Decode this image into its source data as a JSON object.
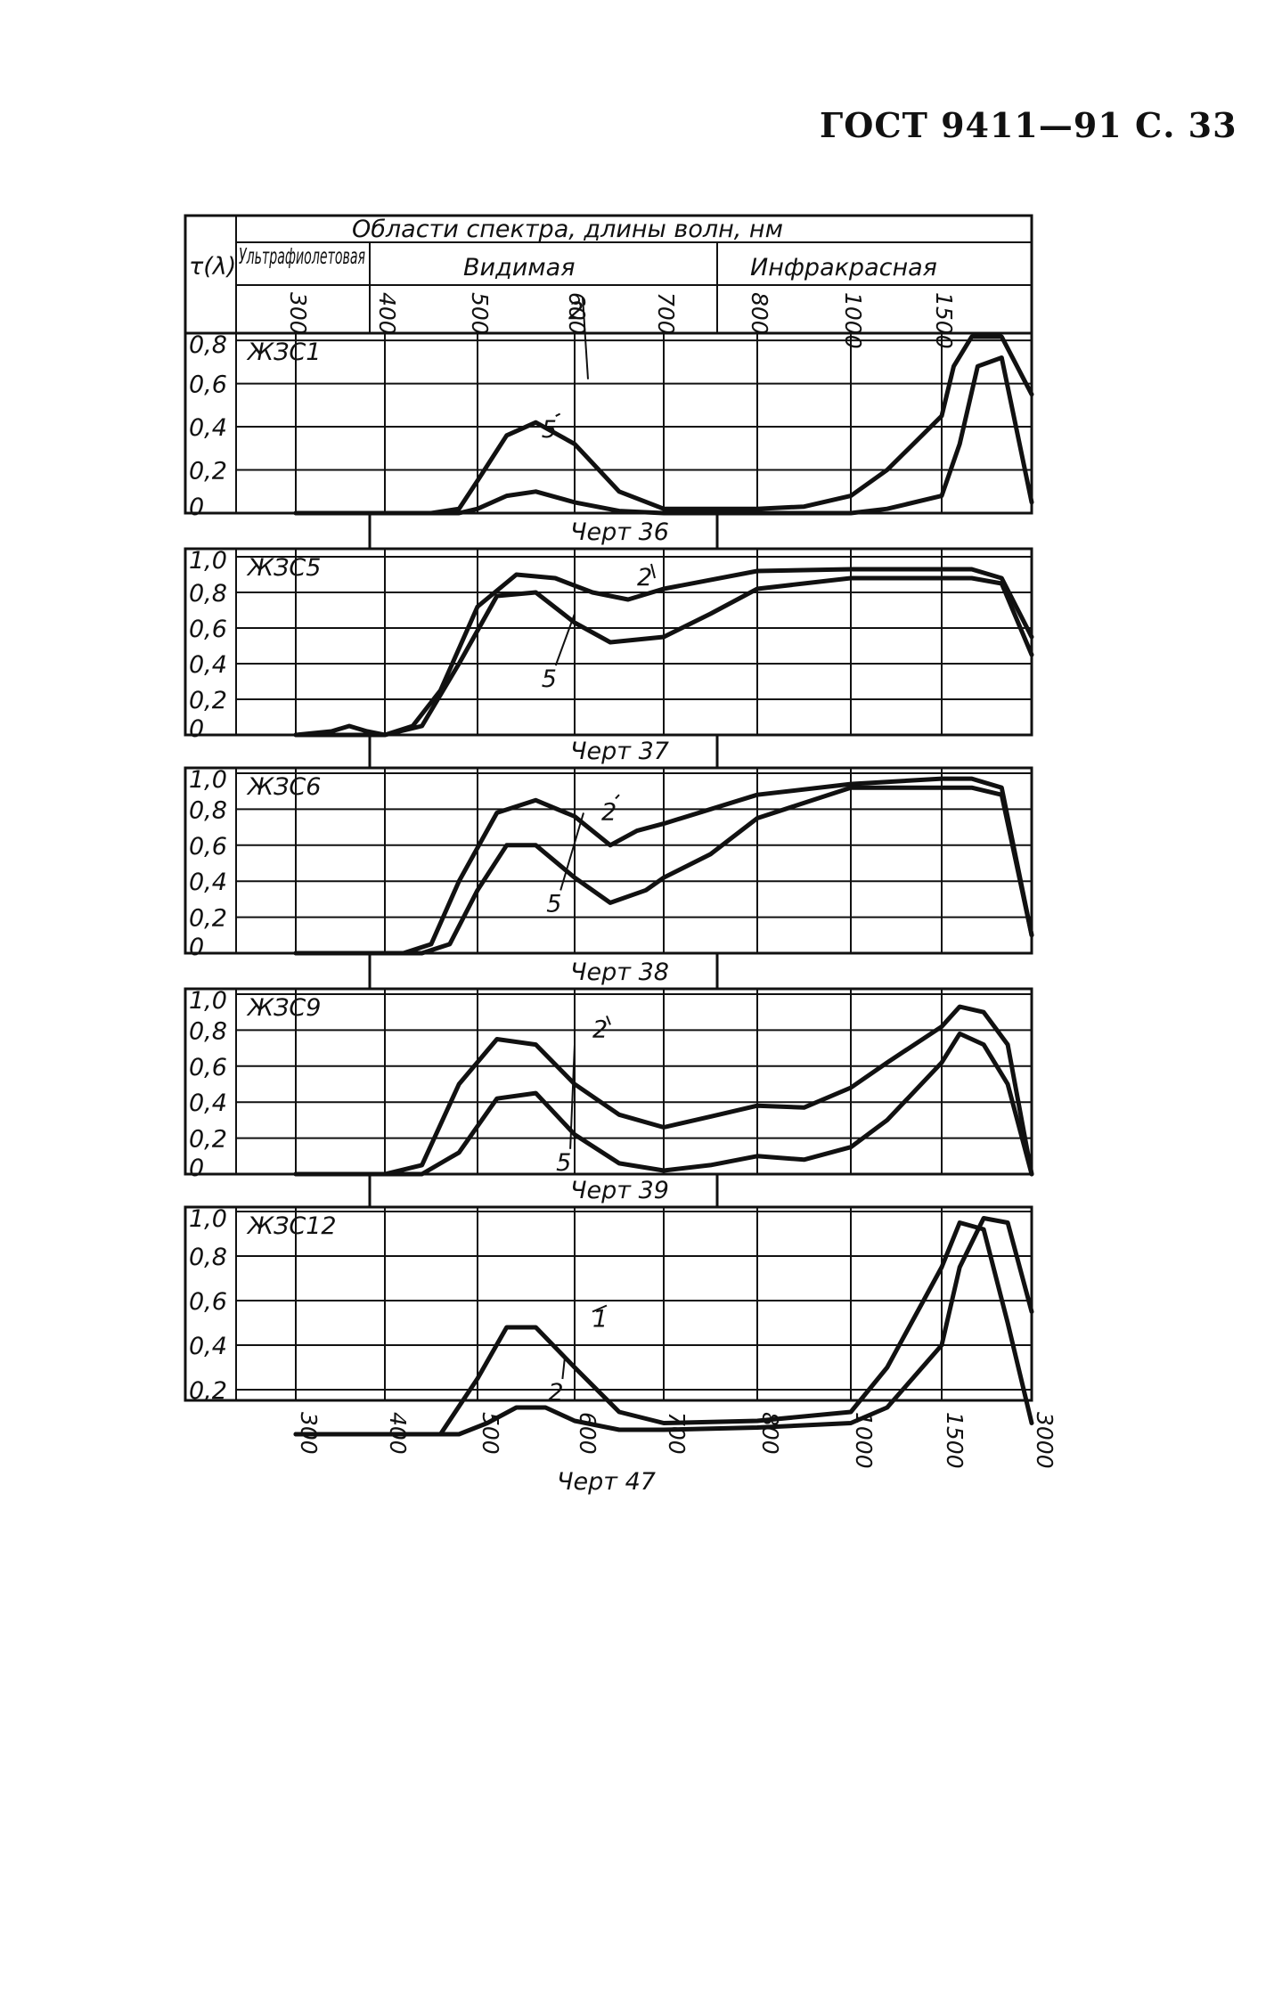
{
  "page": {
    "header": "ГОСТ  9411—91  С.  33",
    "figure_label": "Черт 47"
  },
  "table_header": {
    "ylabel": "τ(λ)",
    "region_title": "Области спектра, длины волн,   нм",
    "regions": [
      "Ультрафиолетовая",
      "Видимая",
      "Инфракрасная"
    ],
    "top_ticks": [
      "300",
      "400",
      "500",
      "600",
      "700",
      "800",
      "1000",
      "1500"
    ],
    "bottom_ticks": [
      "300",
      "400",
      "500",
      "600",
      "700",
      "800",
      "1000",
      "1500",
      "3000"
    ]
  },
  "chart_data": [
    {
      "type": "line",
      "title": "ЖЗС1",
      "caption": "Черт 36",
      "x_scale": "wavelength nm, nonlinear",
      "ylim": [
        0,
        0.9
      ],
      "y_ticks": [
        "0,8",
        "0,6",
        "0,4",
        "0,2",
        "0"
      ],
      "series": [
        {
          "name": "2",
          "x": [
            300,
            450,
            480,
            500,
            530,
            560,
            600,
            650,
            700,
            800,
            900,
            1000,
            1200,
            1500,
            1700,
            2000,
            2500,
            3000
          ],
          "y": [
            0,
            0,
            0.02,
            0.15,
            0.36,
            0.42,
            0.32,
            0.1,
            0.02,
            0.02,
            0.03,
            0.08,
            0.2,
            0.45,
            0.68,
            0.82,
            0.85,
            0.55
          ]
        },
        {
          "name": "5",
          "x": [
            300,
            480,
            500,
            530,
            560,
            600,
            650,
            700,
            800,
            900,
            1000,
            1200,
            1500,
            1800,
            2100,
            2500,
            3000
          ],
          "y": [
            0,
            0,
            0.02,
            0.08,
            0.1,
            0.05,
            0.01,
            0,
            0,
            0,
            0,
            0.02,
            0.08,
            0.32,
            0.68,
            0.72,
            0.05
          ]
        }
      ]
    },
    {
      "type": "line",
      "title": "ЖЗС5",
      "caption": "Черт 37",
      "x_scale": "wavelength nm, nonlinear",
      "ylim": [
        0,
        1.0
      ],
      "y_ticks": [
        "1,0",
        "0,8",
        "0,6",
        "0,4",
        "0,2",
        "0"
      ],
      "series": [
        {
          "name": "2",
          "x": [
            300,
            340,
            360,
            380,
            400,
            430,
            460,
            500,
            540,
            580,
            620,
            660,
            700,
            800,
            1000,
            1500,
            2000,
            2500,
            3000
          ],
          "y": [
            0,
            0.02,
            0.05,
            0.02,
            0,
            0.05,
            0.25,
            0.72,
            0.9,
            0.88,
            0.8,
            0.76,
            0.82,
            0.92,
            0.93,
            0.93,
            0.93,
            0.88,
            0.55
          ]
        },
        {
          "name": "5",
          "x": [
            300,
            400,
            440,
            480,
            520,
            560,
            600,
            640,
            700,
            750,
            800,
            1000,
            1500,
            2000,
            2500,
            3000
          ],
          "y": [
            0,
            0,
            0.05,
            0.4,
            0.78,
            0.8,
            0.63,
            0.52,
            0.55,
            0.68,
            0.82,
            0.88,
            0.88,
            0.88,
            0.85,
            0.45
          ]
        }
      ]
    },
    {
      "type": "line",
      "title": "ЖЗС6",
      "caption": "Черт 38",
      "x_scale": "wavelength nm, nonlinear",
      "ylim": [
        0,
        1.0
      ],
      "y_ticks": [
        "1,0",
        "0,8",
        "0,6",
        "0,4",
        "0,2",
        "0"
      ],
      "series": [
        {
          "name": "2",
          "x": [
            300,
            420,
            450,
            480,
            520,
            560,
            600,
            640,
            670,
            700,
            800,
            1000,
            1500,
            2000,
            2500,
            3000
          ],
          "y": [
            0,
            0,
            0.05,
            0.4,
            0.78,
            0.85,
            0.76,
            0.6,
            0.68,
            0.72,
            0.88,
            0.94,
            0.97,
            0.97,
            0.92,
            0.1
          ]
        },
        {
          "name": "5",
          "x": [
            300,
            440,
            470,
            500,
            530,
            560,
            600,
            640,
            680,
            700,
            750,
            800,
            1000,
            1500,
            2000,
            2500,
            3000
          ],
          "y": [
            0,
            0,
            0.05,
            0.35,
            0.6,
            0.6,
            0.42,
            0.28,
            0.35,
            0.42,
            0.55,
            0.75,
            0.92,
            0.92,
            0.92,
            0.88,
            0.1
          ]
        }
      ]
    },
    {
      "type": "line",
      "title": "ЖЗС9",
      "caption": "Черт 39",
      "x_scale": "wavelength nm, nonlinear",
      "ylim": [
        0,
        1.0
      ],
      "y_ticks": [
        "1,0",
        "0,8",
        "0,6",
        "0,4",
        "0,2",
        "0"
      ],
      "series": [
        {
          "name": "2",
          "x": [
            300,
            400,
            440,
            480,
            520,
            560,
            600,
            650,
            700,
            750,
            800,
            900,
            1000,
            1200,
            1500,
            1800,
            2200,
            2600,
            3000
          ],
          "y": [
            0,
            0,
            0.05,
            0.5,
            0.75,
            0.72,
            0.5,
            0.33,
            0.26,
            0.32,
            0.38,
            0.37,
            0.48,
            0.62,
            0.82,
            0.93,
            0.9,
            0.72,
            0.0
          ]
        },
        {
          "name": "5",
          "x": [
            300,
            440,
            480,
            520,
            560,
            600,
            650,
            700,
            750,
            800,
            900,
            1000,
            1200,
            1500,
            1800,
            2200,
            2600,
            3000
          ],
          "y": [
            0,
            0,
            0.12,
            0.42,
            0.45,
            0.22,
            0.06,
            0.02,
            0.05,
            0.1,
            0.08,
            0.15,
            0.3,
            0.62,
            0.78,
            0.72,
            0.5,
            0.0
          ]
        }
      ]
    },
    {
      "type": "line",
      "title": "ЖЗС12",
      "caption": "",
      "x_scale": "wavelength nm, nonlinear",
      "ylim": [
        0,
        1.0
      ],
      "y_ticks": [
        "1,0",
        "0,8",
        "0,6",
        "0,4",
        "0,2"
      ],
      "series": [
        {
          "name": "1",
          "x": [
            300,
            460,
            500,
            530,
            560,
            600,
            650,
            700,
            800,
            1000,
            1200,
            1500,
            1800,
            2200,
            2600,
            3000
          ],
          "y": [
            0,
            0,
            0.25,
            0.48,
            0.48,
            0.3,
            0.1,
            0.05,
            0.06,
            0.1,
            0.3,
            0.75,
            0.95,
            0.92,
            0.5,
            0.05
          ]
        },
        {
          "name": "2",
          "x": [
            300,
            480,
            510,
            540,
            570,
            600,
            650,
            700,
            800,
            1000,
            1200,
            1500,
            1800,
            2200,
            2600,
            3000
          ],
          "y": [
            0,
            0,
            0.05,
            0.12,
            0.12,
            0.06,
            0.02,
            0.02,
            0.03,
            0.05,
            0.12,
            0.4,
            0.75,
            0.97,
            0.95,
            0.55
          ]
        }
      ]
    }
  ]
}
